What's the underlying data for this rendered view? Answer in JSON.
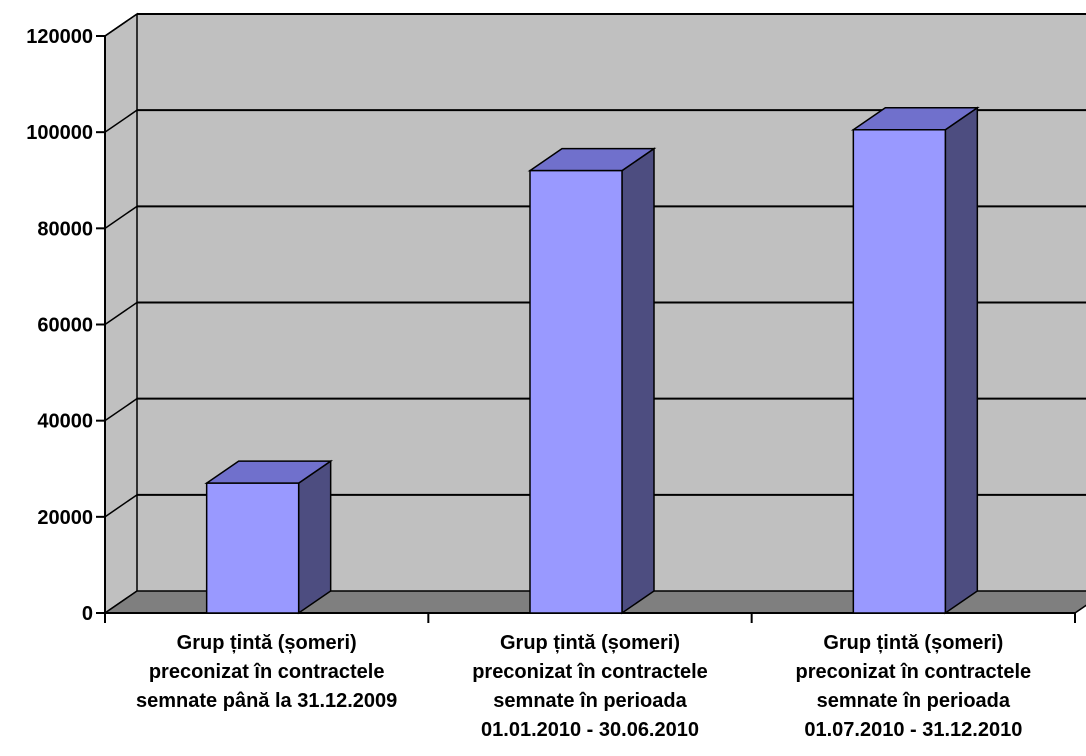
{
  "chart_data": {
    "type": "bar",
    "style": "3d-column",
    "categories": [
      [
        "Grup țintă (șomeri)",
        "preconizat în contractele",
        "semnate până la 31.12.2009"
      ],
      [
        "Grup țintă (șomeri)",
        "preconizat în contractele",
        "semnate în perioada",
        "01.01.2010 - 30.06.2010"
      ],
      [
        "Grup țintă (șomeri)",
        "preconizat în contractele",
        "semnate în perioada",
        "01.07.2010 - 31.12.2010"
      ]
    ],
    "values": [
      27000,
      92000,
      100500
    ],
    "ylim": [
      0,
      120000
    ],
    "yticks": [
      "0",
      "20000",
      "40000",
      "60000",
      "80000",
      "100000",
      "120000"
    ],
    "grid": true,
    "legend": "none",
    "colors": {
      "bar_front": "#9999ff",
      "bar_top": "#7070cc",
      "bar_side": "#4d4d80",
      "wall": "#c0c0c0",
      "floor": "#7f7f7f"
    }
  }
}
